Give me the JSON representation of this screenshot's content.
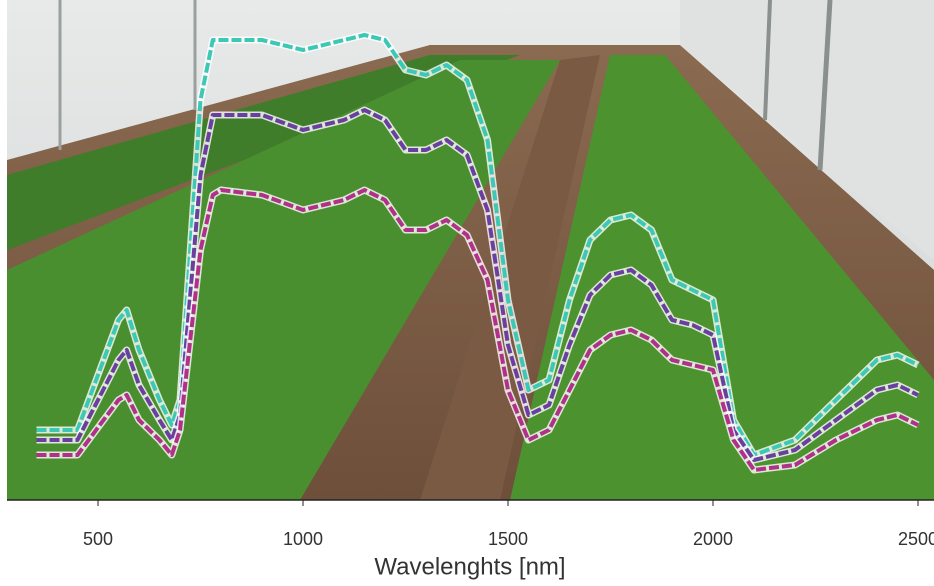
{
  "chart_data": {
    "type": "line",
    "xlabel": "Wavelenghts [nm]",
    "x": [
      350,
      450,
      550,
      570,
      600,
      650,
      680,
      700,
      750,
      780,
      800,
      900,
      1000,
      1100,
      1150,
      1200,
      1250,
      1300,
      1350,
      1400,
      1450,
      1500,
      1550,
      1600,
      1650,
      1700,
      1750,
      1800,
      1850,
      1900,
      1950,
      2000,
      2050,
      2100,
      2200,
      2300,
      2400,
      2450,
      2500
    ],
    "series": [
      {
        "color": "#3cc8b4",
        "values": [
          0.14,
          0.14,
          0.36,
          0.38,
          0.3,
          0.2,
          0.15,
          0.2,
          0.8,
          0.92,
          0.92,
          0.92,
          0.9,
          0.92,
          0.93,
          0.92,
          0.86,
          0.85,
          0.87,
          0.84,
          0.72,
          0.4,
          0.22,
          0.24,
          0.4,
          0.52,
          0.56,
          0.57,
          0.54,
          0.44,
          0.42,
          0.4,
          0.16,
          0.09,
          0.12,
          0.2,
          0.28,
          0.29,
          0.27
        ]
      },
      {
        "color": "#6a3fa0",
        "values": [
          0.12,
          0.12,
          0.28,
          0.3,
          0.23,
          0.16,
          0.12,
          0.17,
          0.65,
          0.77,
          0.77,
          0.77,
          0.74,
          0.76,
          0.78,
          0.76,
          0.7,
          0.7,
          0.72,
          0.69,
          0.58,
          0.31,
          0.17,
          0.19,
          0.31,
          0.41,
          0.45,
          0.46,
          0.43,
          0.36,
          0.35,
          0.33,
          0.14,
          0.08,
          0.1,
          0.16,
          0.22,
          0.23,
          0.21
        ]
      },
      {
        "color": "#b0308a",
        "values": [
          0.09,
          0.09,
          0.2,
          0.21,
          0.16,
          0.12,
          0.09,
          0.14,
          0.5,
          0.61,
          0.62,
          0.61,
          0.58,
          0.6,
          0.62,
          0.6,
          0.54,
          0.54,
          0.56,
          0.53,
          0.44,
          0.22,
          0.12,
          0.14,
          0.22,
          0.3,
          0.33,
          0.34,
          0.32,
          0.28,
          0.27,
          0.26,
          0.12,
          0.06,
          0.07,
          0.12,
          0.16,
          0.17,
          0.15
        ]
      }
    ],
    "xlim": [
      278,
      2539
    ],
    "ylim": [
      0,
      1
    ],
    "xticks": [
      500,
      1000,
      1500,
      2000,
      2500
    ]
  }
}
